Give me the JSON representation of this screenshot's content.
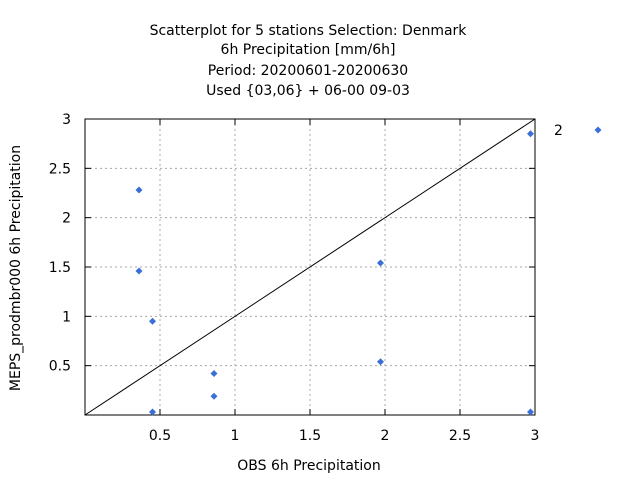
{
  "chart_data": {
    "type": "scatter",
    "title_lines": [
      "Scatterplot for    5 stations Selection: Denmark",
      "6h Precipitation [mm/6h]",
      "Period: 20200601-20200630",
      "Used {03,06} + 06-00 09-03"
    ],
    "xlabel": "OBS 6h Precipitation",
    "ylabel": "MEPS_prodmbr000 6h Precipitation",
    "xlim": [
      0,
      3
    ],
    "ylim": [
      0,
      3
    ],
    "x_ticks": [
      "0.5",
      "1",
      "1.5",
      "2",
      "2.5",
      "3"
    ],
    "y_ticks": [
      "0.5",
      "1",
      "1.5",
      "2",
      "2.5",
      "3"
    ],
    "grid": true,
    "diagonal": true,
    "legend_position": "right",
    "series": [
      {
        "name": "2",
        "color": "#3b6fd8",
        "marker": "diamond",
        "points": [
          [
            0.36,
            2.28
          ],
          [
            0.36,
            1.46
          ],
          [
            0.45,
            0.95
          ],
          [
            0.45,
            0.03
          ],
          [
            0.86,
            0.42
          ],
          [
            0.86,
            0.19
          ],
          [
            1.97,
            1.54
          ],
          [
            1.97,
            0.54
          ],
          [
            2.97,
            2.85
          ],
          [
            2.97,
            0.03
          ]
        ]
      }
    ]
  }
}
